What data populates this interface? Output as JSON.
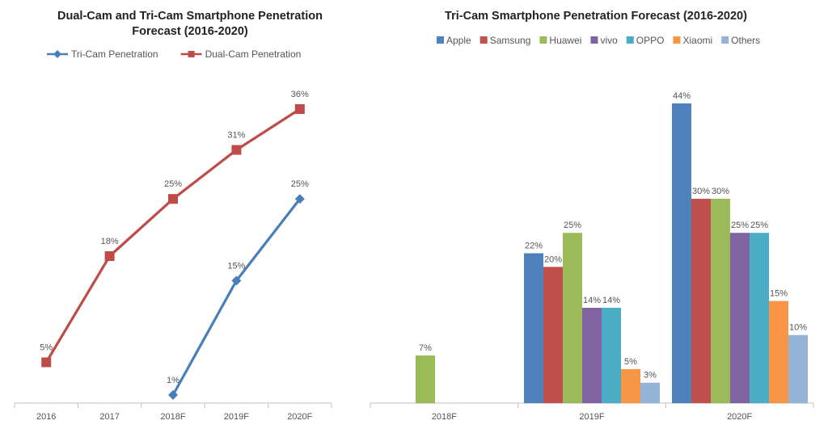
{
  "chart_data": [
    {
      "type": "line",
      "title_line1": "Dual-Cam and Tri-Cam Smartphone Penetration",
      "title_line2": "Forecast (2016-2020)",
      "categories": [
        "2016",
        "2017",
        "2018F",
        "2019F",
        "2020F"
      ],
      "ylim": [
        0,
        40
      ],
      "legend_position": "top",
      "grid": false,
      "series": [
        {
          "name": "Tri-Cam Penetration",
          "color": "#4a7ebb",
          "marker": "diamond",
          "values": [
            null,
            null,
            1,
            15,
            25
          ],
          "labels": [
            null,
            null,
            "1%",
            "15%",
            "25%"
          ]
        },
        {
          "name": "Dual-Cam Penetration",
          "color": "#be4b48",
          "marker": "square",
          "values": [
            5,
            18,
            25,
            31,
            36
          ],
          "labels": [
            "5%",
            "18%",
            "25%",
            "31%",
            "36%"
          ]
        }
      ]
    },
    {
      "type": "bar",
      "title": "Tri-Cam Smartphone Penetration Forecast (2016-2020)",
      "categories": [
        "2018F",
        "2019F",
        "2020F"
      ],
      "ylim": [
        0,
        48
      ],
      "legend_position": "top",
      "grid": false,
      "series": [
        {
          "name": "Apple",
          "color": "#4f81bd",
          "values": [
            null,
            22,
            44
          ],
          "labels": [
            null,
            "22%",
            "44%"
          ]
        },
        {
          "name": "Samsung",
          "color": "#c0504d",
          "values": [
            null,
            20,
            30
          ],
          "labels": [
            null,
            "20%",
            "30%"
          ]
        },
        {
          "name": "Huawei",
          "color": "#9bbb59",
          "values": [
            7,
            25,
            30
          ],
          "labels": [
            "7%",
            "25%",
            "30%"
          ]
        },
        {
          "name": "vivo",
          "color": "#8064a2",
          "values": [
            null,
            14,
            25
          ],
          "labels": [
            null,
            "14%",
            "25%"
          ]
        },
        {
          "name": "OPPO",
          "color": "#4bacc6",
          "values": [
            null,
            14,
            25
          ],
          "labels": [
            null,
            "14%",
            "25%"
          ]
        },
        {
          "name": "Xiaomi",
          "color": "#f79646",
          "values": [
            null,
            5,
            15
          ],
          "labels": [
            null,
            "5%",
            "15%"
          ]
        },
        {
          "name": "Others",
          "color": "#95b3d7",
          "values": [
            null,
            3,
            10
          ],
          "labels": [
            null,
            "3%",
            "10%"
          ]
        }
      ]
    }
  ]
}
